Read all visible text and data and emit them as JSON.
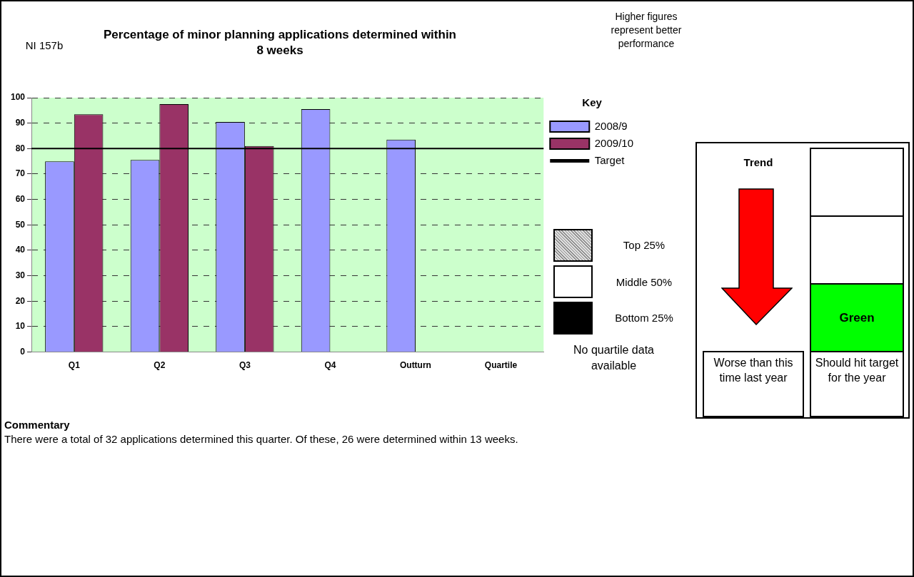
{
  "chart_data": {
    "type": "bar",
    "title": "Percentage of minor planning applications determined within 8 weeks",
    "legend_title": "Key",
    "categories": [
      "Q1",
      "Q2",
      "Q3",
      "Q4",
      "Outturn",
      "Quartile"
    ],
    "series": [
      {
        "name": "2008/9",
        "color": "#9999ff",
        "values": [
          75,
          75.5,
          90.5,
          95.5,
          83.5,
          null
        ]
      },
      {
        "name": "2009/10",
        "color": "#993366",
        "values": [
          93.5,
          97.5,
          81,
          null,
          null,
          null
        ]
      }
    ],
    "ylim": [
      0,
      100
    ],
    "yticks": [
      0,
      10,
      20,
      30,
      40,
      50,
      60,
      70,
      80,
      90,
      100
    ],
    "grid": "y",
    "legend": "right",
    "ref_lines": [
      {
        "axis": "y",
        "value": 80,
        "label": "Target",
        "color": "#000000"
      }
    ],
    "annotations": [
      "NI 157b",
      "Higher figures represent better performance",
      "Top 25%",
      "Middle 50%",
      "Bottom 25%",
      "No quartile data available",
      "Trend",
      "Green",
      "Worse than this time last year",
      "Should hit target for the year",
      "Commentary",
      "There were a total of 32 applications determined this quarter. Of these, 26 were determined within 13 weeks."
    ]
  }
}
